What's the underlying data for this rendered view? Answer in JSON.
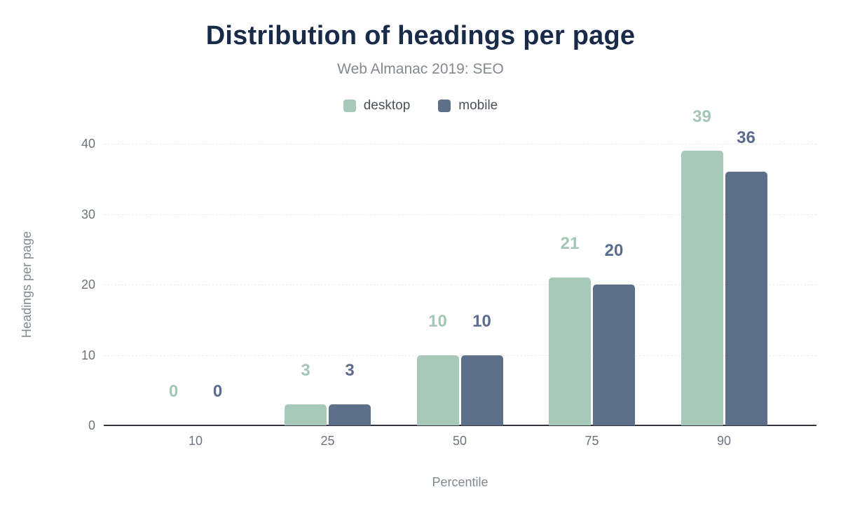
{
  "chart_data": {
    "type": "bar",
    "title": "Distribution of headings per page",
    "subtitle": "Web Almanac 2019: SEO",
    "xlabel": "Percentile",
    "ylabel": "Headings per page",
    "categories": [
      "10",
      "25",
      "50",
      "75",
      "90"
    ],
    "series": [
      {
        "name": "desktop",
        "color": "#a6c9b9",
        "label_color": "#a3c6b5",
        "values": [
          0,
          3,
          10,
          21,
          39
        ]
      },
      {
        "name": "mobile",
        "color": "#5e6f8a",
        "label_color": "#5a6c90",
        "values": [
          0,
          3,
          10,
          20,
          36
        ]
      }
    ],
    "ylim": [
      0,
      40
    ],
    "yticks": [
      0,
      10,
      20,
      30,
      40
    ],
    "grid": true,
    "gridline_style": "dashed",
    "legend_position": "top",
    "data_labels_shown": true
  },
  "colors": {
    "background": "#ffffff",
    "title": "#1a2b4a",
    "subtitle": "#85898e",
    "legend_text": "#4c5158",
    "tick_text": "#6e747c",
    "axis_title_text": "#82888f",
    "axis_line": "#34353c",
    "gridline": "#ececec",
    "desktop": "#a6c9b9",
    "mobile": "#5e6f8a"
  }
}
